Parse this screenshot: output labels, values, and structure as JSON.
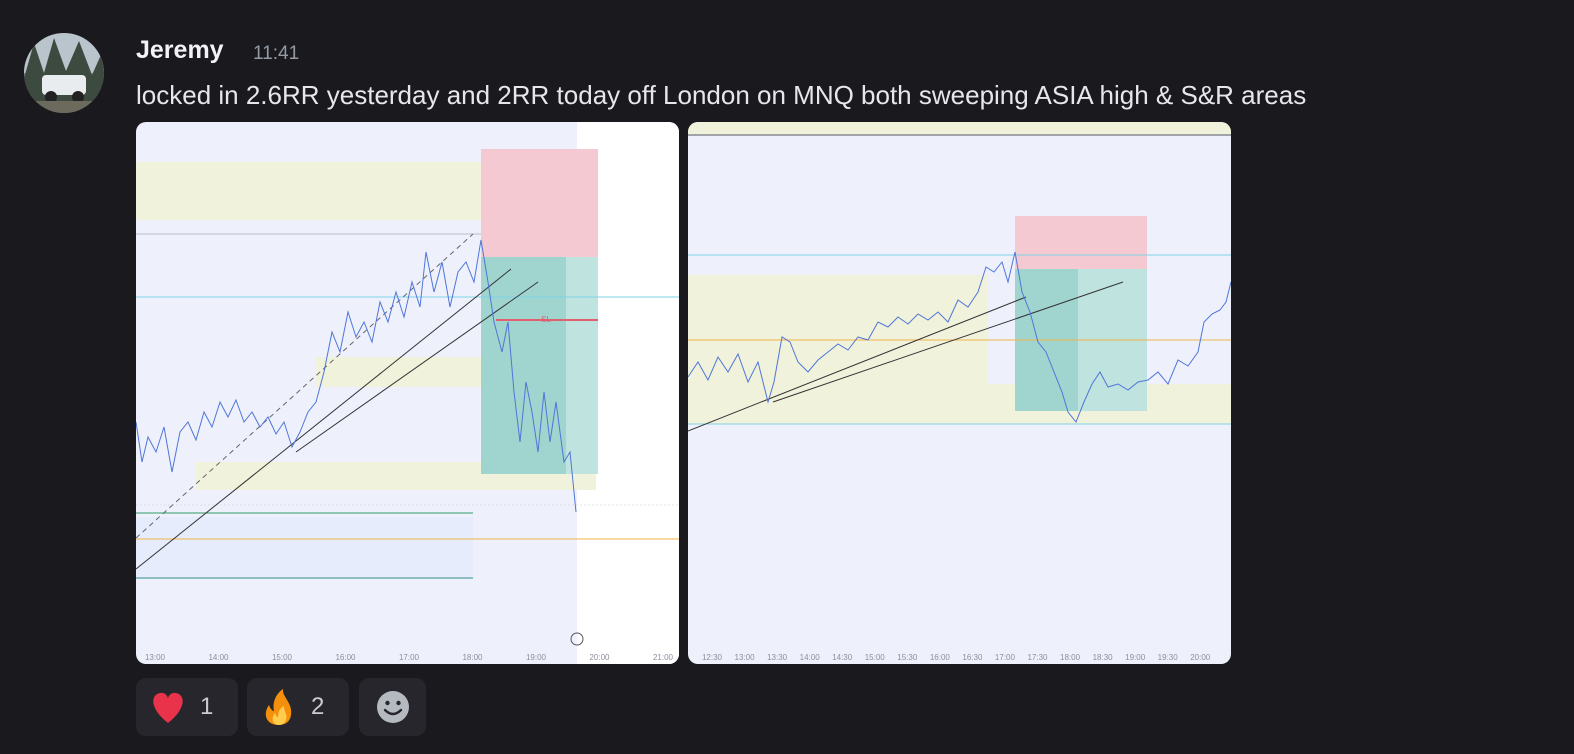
{
  "author": {
    "name": "Jeremy",
    "time": "11:41"
  },
  "message": {
    "text": "locked in 2.6RR yesterday and 2RR today off London on MNQ both sweeping ASIA high & S&R areas"
  },
  "attachments": [
    {
      "x_labels": [
        "13:00",
        "14:00",
        "15:00",
        "16:00",
        "17:00",
        "18:00",
        "19:00",
        "20:00",
        "21:00"
      ],
      "sl_label": "SL"
    },
    {
      "x_labels": [
        "12:30",
        "13:00",
        "13:30",
        "14:00",
        "14:30",
        "15:00",
        "15:30",
        "16:00",
        "16:30",
        "17:00",
        "17:30",
        "18:00",
        "18:30",
        "19:00",
        "19:30",
        "20:00"
      ]
    }
  ],
  "reactions": [
    {
      "count": 1
    },
    {
      "count": 2
    }
  ]
}
